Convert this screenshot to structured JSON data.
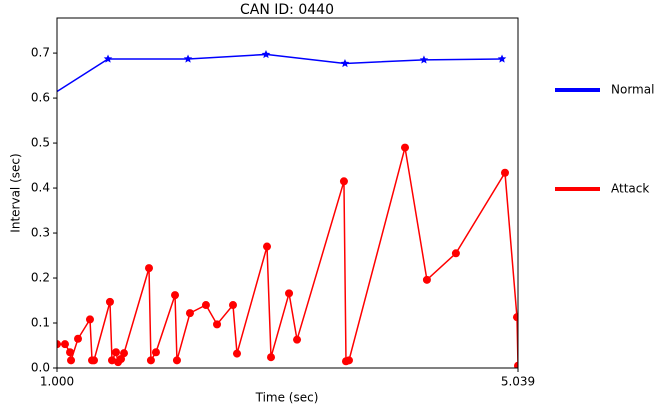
{
  "chart_data": {
    "type": "line",
    "title": "CAN ID: 0440",
    "x_label": "Time (sec)",
    "y_label": "Interval (sec)",
    "xlim": [
      1.0,
      5.039
    ],
    "xticks": [
      {
        "value": 1.0,
        "label": "1.000"
      },
      {
        "value": 5.039,
        "label": "5.039"
      }
    ],
    "ylim": [
      0,
      0.778
    ],
    "yticks": [
      {
        "value": 0,
        "label": "0.0"
      },
      0.1,
      0.2,
      0.3,
      0.4,
      0.5,
      0.6,
      0.7
    ],
    "legend": "right",
    "series": [
      {
        "name": "Normal",
        "color": "#0000ff",
        "marker": "star",
        "x": [
          0.755,
          1.447,
          2.148,
          2.831,
          3.523,
          4.215,
          4.899
        ],
        "values": [
          0.575,
          0.687,
          0.687,
          0.697,
          0.677,
          0.685,
          0.687
        ]
      },
      {
        "name": "Attack",
        "color": "#ff0000",
        "marker": "circle",
        "x": [
          1.0,
          1.07,
          1.114,
          1.123,
          1.184,
          1.289,
          1.307,
          1.324,
          1.464,
          1.482,
          1.517,
          1.535,
          1.561,
          1.587,
          1.806,
          1.823,
          1.867,
          2.034,
          2.051,
          2.165,
          2.305,
          2.402,
          2.542,
          2.577,
          2.84,
          2.875,
          3.033,
          3.103,
          3.514,
          3.532,
          3.558,
          4.049,
          4.241,
          4.495,
          4.925,
          5.03,
          5.039
        ],
        "values": [
          0.053,
          0.053,
          0.035,
          0.017,
          0.065,
          0.108,
          0.017,
          0.017,
          0.147,
          0.017,
          0.035,
          0.013,
          0.02,
          0.033,
          0.222,
          0.017,
          0.035,
          0.162,
          0.017,
          0.122,
          0.14,
          0.097,
          0.14,
          0.032,
          0.27,
          0.024,
          0.166,
          0.063,
          0.415,
          0.015,
          0.017,
          0.49,
          0.196,
          0.255,
          0.434,
          0.113,
          0.005
        ]
      }
    ]
  }
}
